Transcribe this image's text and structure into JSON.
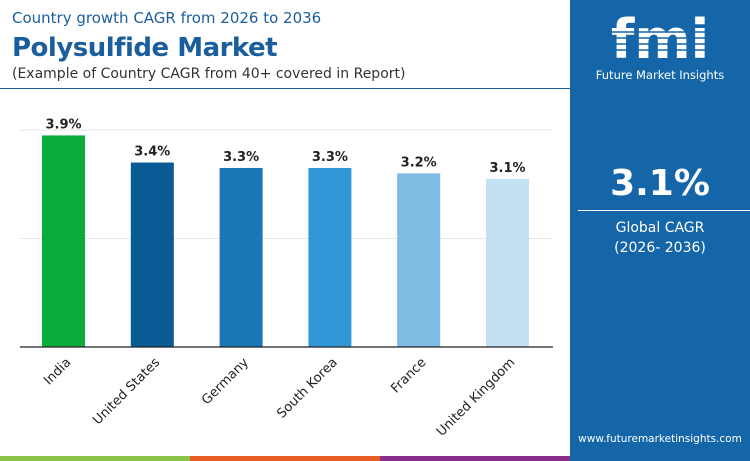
{
  "header": {
    "subtitle": "Country growth CAGR from 2026 to 2036",
    "title": "Polysulfide Market",
    "note": "(Example of Country CAGR from 40+ covered in Report)"
  },
  "panel": {
    "brand": "Future Market Insights",
    "logo_text": "fmi",
    "value": "3.1%",
    "label": "Global CAGR",
    "period": "(2026- 2036)",
    "url": "www.futuremarketinsights.com",
    "color": "#1566a8"
  },
  "stripe_colors": [
    "#8bc34a",
    "#e85d26",
    "#8b2e8b"
  ],
  "chart_data": {
    "type": "bar",
    "categories": [
      "India",
      "United States",
      "Germany",
      "South Korea",
      "France",
      "United Kingdom"
    ],
    "values": [
      3.9,
      3.4,
      3.3,
      3.3,
      3.2,
      3.1
    ],
    "labels": [
      "3.9%",
      "3.4%",
      "3.3%",
      "3.3%",
      "3.2%",
      "3.1%"
    ],
    "colors": [
      "#0aab3a",
      "#0a5a93",
      "#1a78b8",
      "#2f97d8",
      "#7fbbe2",
      "#c3e1f3"
    ],
    "ylim": [
      0,
      4
    ],
    "grid": true,
    "gridlines": [
      2,
      4
    ]
  }
}
